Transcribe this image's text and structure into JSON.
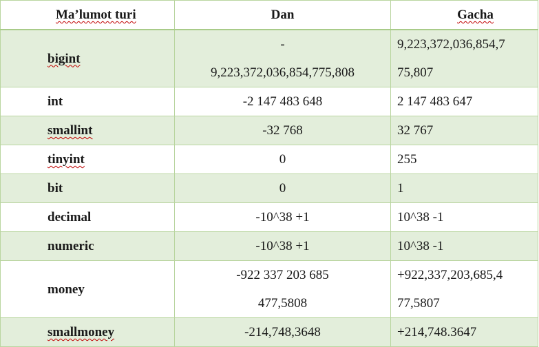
{
  "headers": {
    "type": "Ma’lumot turi",
    "from": "Dan",
    "to": "Gacha"
  },
  "rows": [
    {
      "name": "bigint",
      "from_line1": "-",
      "from_line2": "9,223,372,036,854,775,808",
      "to_line1": "9,223,372,036,854,7",
      "to_line2": "75,807"
    },
    {
      "name": "int",
      "from": "-2 147 483 648",
      "to": "2 147 483 647"
    },
    {
      "name": "smallint",
      "from": "-32 768",
      "to": "32 767"
    },
    {
      "name": "tinyint",
      "from": "0",
      "to": "255"
    },
    {
      "name": "bit",
      "from": "0",
      "to": "1"
    },
    {
      "name": "decimal",
      "from": "-10^38 +1",
      "to": "10^38 -1"
    },
    {
      "name": "numeric",
      "from": "-10^38 +1",
      "to": "10^38 -1"
    },
    {
      "name": "money",
      "from_line1": "-922 337 203 685",
      "from_line2": "477,5808",
      "to_line1": "+922,337,203,685,4",
      "to_line2": "77,5807"
    },
    {
      "name": "smallmoney",
      "from": "-214,748,3648",
      "to": "+214,748.3647"
    }
  ]
}
